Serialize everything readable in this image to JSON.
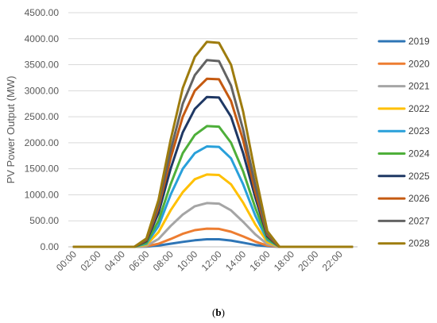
{
  "chart_data": {
    "type": "line",
    "ylabel": "PV Power Output (MW)",
    "ylim": [
      0,
      4500
    ],
    "yticks": [
      "0.00",
      "500.00",
      "1000.00",
      "1500.00",
      "2000.00",
      "2500.00",
      "3000.00",
      "3500.00",
      "4000.00",
      "4500.00"
    ],
    "xticks": [
      "00:00",
      "02:00",
      "04:00",
      "06:00",
      "08:00",
      "10:00",
      "12:00",
      "14:00",
      "16:00",
      "18:00",
      "20:00",
      "22:00"
    ],
    "grid": "horizontal",
    "legend_position": "right",
    "x": [
      "00:00",
      "01:00",
      "02:00",
      "03:00",
      "04:00",
      "05:00",
      "06:00",
      "07:00",
      "08:00",
      "09:00",
      "10:00",
      "11:00",
      "12:00",
      "13:00",
      "14:00",
      "15:00",
      "16:00",
      "17:00",
      "18:00",
      "19:00",
      "20:00",
      "21:00",
      "22:00",
      "23:00"
    ],
    "series": [
      {
        "name": "2019",
        "color": "#2E75B6",
        "values": [
          0,
          0,
          0,
          0,
          0,
          0,
          5,
          25,
          60,
          95,
          125,
          145,
          145,
          120,
          80,
          35,
          10,
          0,
          0,
          0,
          0,
          0,
          0,
          0
        ]
      },
      {
        "name": "2020",
        "color": "#ED7D31",
        "values": [
          0,
          0,
          0,
          0,
          0,
          0,
          10,
          60,
          150,
          250,
          320,
          350,
          345,
          290,
          200,
          100,
          25,
          0,
          0,
          0,
          0,
          0,
          0,
          0
        ]
      },
      {
        "name": "2021",
        "color": "#A5A5A5",
        "values": [
          0,
          0,
          0,
          0,
          0,
          0,
          20,
          150,
          400,
          620,
          780,
          840,
          830,
          700,
          480,
          240,
          50,
          0,
          0,
          0,
          0,
          0,
          0,
          0
        ]
      },
      {
        "name": "2022",
        "color": "#FFC000",
        "values": [
          0,
          0,
          0,
          0,
          0,
          0,
          40,
          280,
          700,
          1050,
          1300,
          1390,
          1380,
          1200,
          850,
          430,
          90,
          0,
          0,
          0,
          0,
          0,
          0,
          0
        ]
      },
      {
        "name": "2023",
        "color": "#29A0DA",
        "values": [
          0,
          0,
          0,
          0,
          0,
          0,
          60,
          400,
          1000,
          1500,
          1800,
          1930,
          1920,
          1700,
          1200,
          600,
          130,
          0,
          0,
          0,
          0,
          0,
          0,
          0
        ]
      },
      {
        "name": "2024",
        "color": "#4EAF3A",
        "values": [
          0,
          0,
          0,
          0,
          0,
          0,
          80,
          500,
          1200,
          1800,
          2150,
          2320,
          2310,
          2000,
          1450,
          750,
          160,
          0,
          0,
          0,
          0,
          0,
          0,
          0
        ]
      },
      {
        "name": "2025",
        "color": "#1F3864",
        "values": [
          0,
          0,
          0,
          0,
          0,
          0,
          110,
          650,
          1500,
          2200,
          2650,
          2880,
          2870,
          2500,
          1800,
          950,
          200,
          0,
          0,
          0,
          0,
          0,
          0,
          0
        ]
      },
      {
        "name": "2026",
        "color": "#C55A11",
        "values": [
          0,
          0,
          0,
          0,
          0,
          0,
          130,
          750,
          1700,
          2500,
          3000,
          3230,
          3220,
          2800,
          2050,
          1050,
          230,
          0,
          0,
          0,
          0,
          0,
          0,
          0
        ]
      },
      {
        "name": "2027",
        "color": "#636363",
        "values": [
          0,
          0,
          0,
          0,
          0,
          0,
          145,
          820,
          1850,
          2750,
          3300,
          3590,
          3570,
          3100,
          2250,
          1180,
          260,
          0,
          0,
          0,
          0,
          0,
          0,
          0
        ]
      },
      {
        "name": "2028",
        "color": "#9E7C0E",
        "values": [
          0,
          0,
          0,
          0,
          0,
          0,
          160,
          900,
          2050,
          3050,
          3650,
          3940,
          3920,
          3500,
          2600,
          1400,
          300,
          0,
          0,
          0,
          0,
          0,
          0,
          0
        ]
      }
    ]
  },
  "caption": {
    "open": "(",
    "letter": "b",
    "close": ")"
  }
}
